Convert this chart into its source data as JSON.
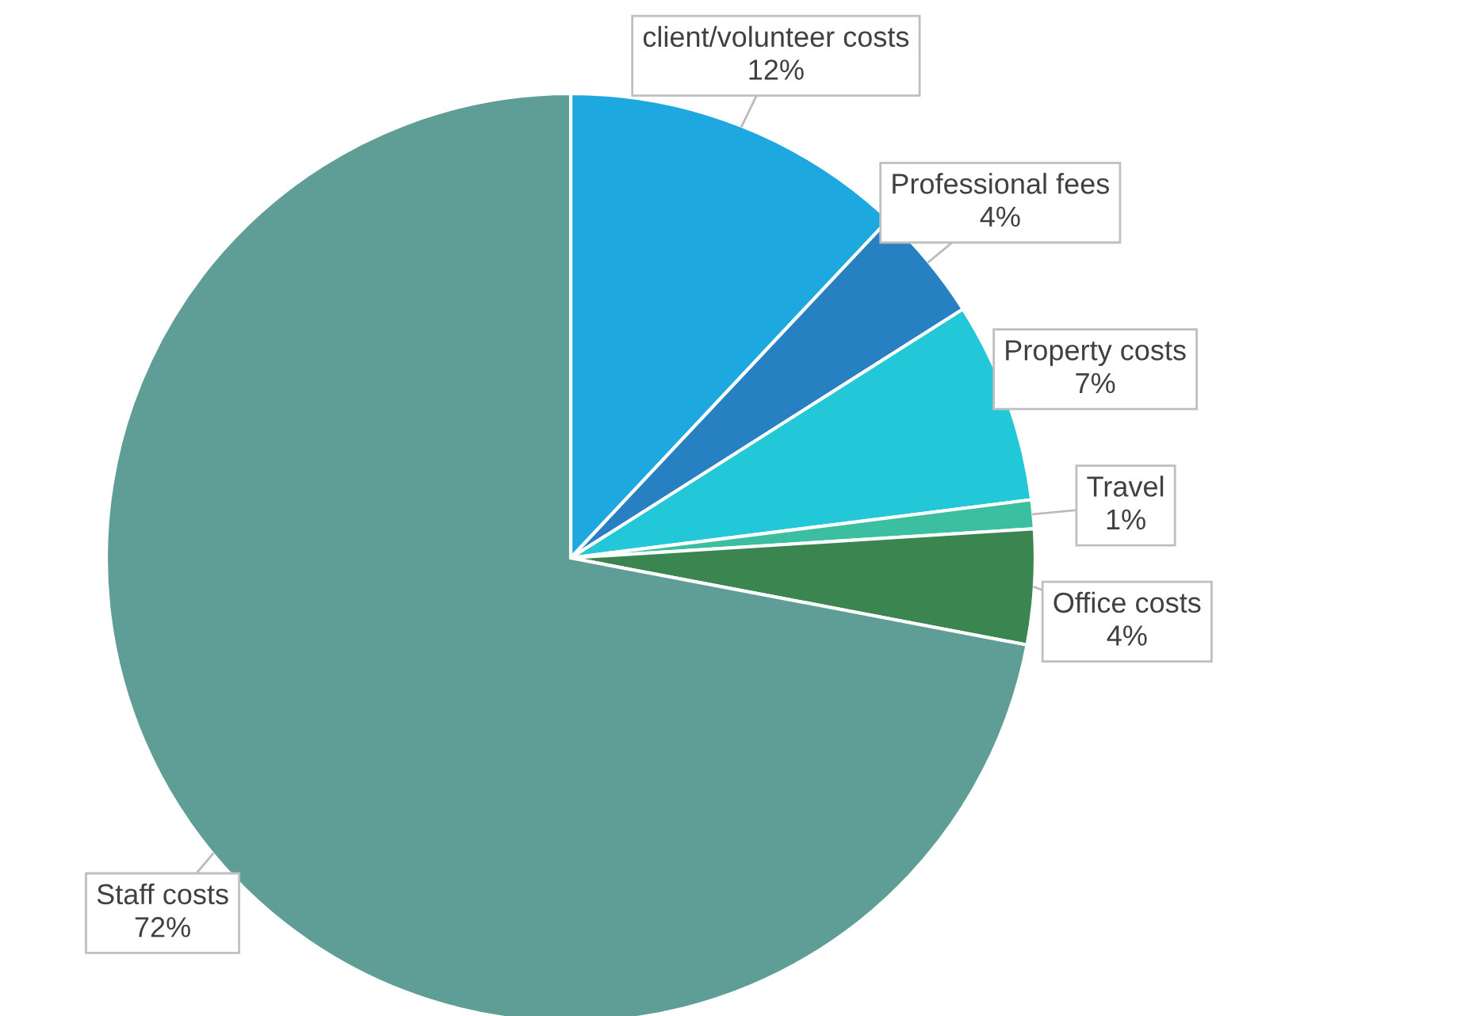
{
  "chart_data": {
    "type": "pie",
    "categories": [
      "client/volunteer costs",
      "Professional fees",
      "Property costs",
      "Travel",
      "Office costs",
      "Staff costs"
    ],
    "values": [
      12,
      4,
      7,
      1,
      4,
      72
    ],
    "value_labels": [
      "12%",
      "4%",
      "7%",
      "1%",
      "4%",
      "72%"
    ],
    "colors": [
      "#1ea8e0",
      "#2680c2",
      "#22c8d8",
      "#3cbfa0",
      "#3a8550",
      "#5f9e97"
    ],
    "legend": false
  }
}
